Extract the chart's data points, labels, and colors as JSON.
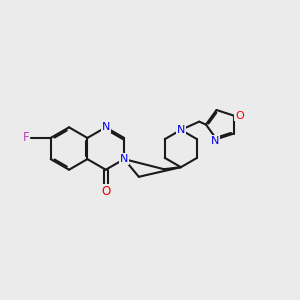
{
  "bg_color": "#ebebeb",
  "bond_color": "#1a1a1a",
  "N_color": "#0000ee",
  "O_color": "#ee0000",
  "F_color": "#bb44bb",
  "line_width": 1.5,
  "dbo": 0.055,
  "xlim": [
    0,
    10
  ],
  "ylim": [
    2,
    8
  ]
}
